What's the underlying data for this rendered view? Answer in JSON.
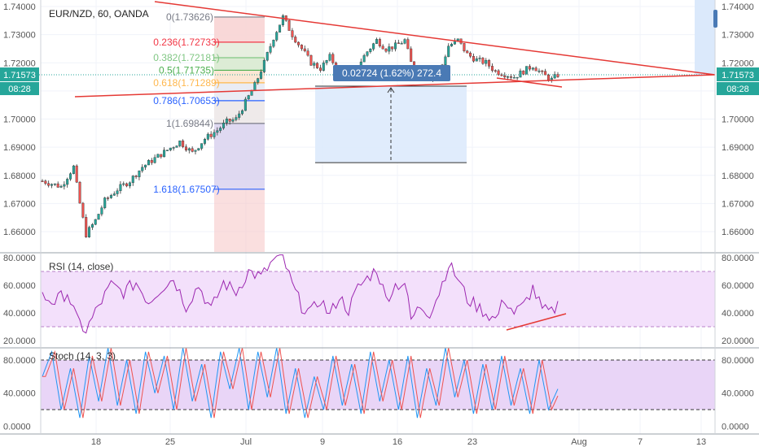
{
  "header": {
    "symbol_title": "EUR/NZD, 60, OANDA"
  },
  "colors": {
    "candle_up": "#26a69a",
    "candle_down": "#ef5350",
    "trendline": "#e53935",
    "rsi_line": "#9c27b0",
    "rsi_band": "#f3e0fb",
    "stoch_k": "#2196f3",
    "stoch_d": "#ef5350",
    "stoch_band": "#e9d5f7",
    "price_tag": "#26a69a",
    "price_line": "#26a69a",
    "measure_label_bg": "#4a7ab5",
    "measure_box": "#dbe9fb",
    "grid": "#f0f3fa",
    "axis_text": "#555555"
  },
  "chart_data": [
    {
      "type": "candlestick",
      "title": "EUR/NZD, 60, OANDA",
      "x_ticks": [
        "18",
        "25",
        "Jul",
        "9",
        "16",
        "23",
        "Aug",
        "7",
        "13"
      ],
      "y_ticks": [
        "1.74000",
        "1.73000",
        "1.72000",
        "1.71000",
        "1.70000",
        "1.69000",
        "1.68000",
        "1.67000",
        "1.66000"
      ],
      "ylim": [
        1.652,
        1.7405
      ],
      "close_path": [
        [
          0,
          1.678
        ],
        [
          6,
          1.676
        ],
        [
          10,
          1.683
        ],
        [
          12,
          1.67
        ],
        [
          14,
          1.659
        ],
        [
          17,
          1.664
        ],
        [
          20,
          1.671
        ],
        [
          24,
          1.675
        ],
        [
          28,
          1.678
        ],
        [
          32,
          1.683
        ],
        [
          36,
          1.686
        ],
        [
          40,
          1.689
        ],
        [
          44,
          1.692
        ],
        [
          48,
          1.688
        ],
        [
          52,
          1.693
        ],
        [
          56,
          1.696
        ],
        [
          59,
          1.699
        ],
        [
          62,
          1.7
        ],
        [
          65,
          1.706
        ],
        [
          68,
          1.712
        ],
        [
          71,
          1.72
        ],
        [
          74,
          1.729
        ],
        [
          77,
          1.7362
        ],
        [
          80,
          1.73
        ],
        [
          83,
          1.725
        ],
        [
          86,
          1.72
        ],
        [
          89,
          1.718
        ],
        [
          92,
          1.722
        ],
        [
          95,
          1.717
        ],
        [
          98,
          1.715
        ],
        [
          101,
          1.719
        ],
        [
          104,
          1.724
        ],
        [
          107,
          1.728
        ],
        [
          110,
          1.725
        ],
        [
          113,
          1.726
        ],
        [
          116,
          1.728
        ],
        [
          118,
          1.72
        ],
        [
          121,
          1.718
        ],
        [
          124,
          1.715
        ],
        [
          127,
          1.716
        ],
        [
          130,
          1.726
        ],
        [
          133,
          1.728
        ],
        [
          136,
          1.723
        ],
        [
          139,
          1.721
        ],
        [
          142,
          1.72
        ],
        [
          145,
          1.717
        ],
        [
          148,
          1.716
        ],
        [
          151,
          1.715
        ],
        [
          154,
          1.717
        ],
        [
          157,
          1.719
        ],
        [
          160,
          1.716
        ],
        [
          163,
          1.714
        ],
        [
          165,
          1.7157
        ]
      ],
      "last_price": "1.71573",
      "countdown": "08:28",
      "fibonacci": [
        {
          "ratio": "0",
          "price": "1.73626",
          "color": "#787b86"
        },
        {
          "ratio": "0.236",
          "price": "1.72733",
          "color": "#f23645"
        },
        {
          "ratio": "0.382",
          "price": "1.72181",
          "color": "#81c784"
        },
        {
          "ratio": "0.5",
          "price": "1.71735",
          "color": "#4caf50"
        },
        {
          "ratio": "0.618",
          "price": "1.71289",
          "color": "#ffb74d"
        },
        {
          "ratio": "0.786",
          "price": "1.70653",
          "color": "#2962ff"
        },
        {
          "ratio": "1",
          "price": "1.69844",
          "color": "#787b86"
        },
        {
          "ratio": "1.618",
          "price": "1.67507",
          "color": "#2962ff"
        }
      ],
      "measure_label": "0.02724 (1.62%) 272.4",
      "measure_range": [
        1.6845,
        1.7117
      ]
    },
    {
      "type": "line",
      "title": "RSI (14, close)",
      "ylim": [
        20,
        80
      ],
      "y_ticks": [
        "80.0000",
        "60.0000",
        "40.0000",
        "20.0000"
      ],
      "bands": [
        30,
        70
      ],
      "path": [
        [
          0,
          52
        ],
        [
          4,
          48
        ],
        [
          8,
          55
        ],
        [
          11,
          35
        ],
        [
          14,
          27
        ],
        [
          18,
          45
        ],
        [
          22,
          60
        ],
        [
          26,
          55
        ],
        [
          30,
          62
        ],
        [
          34,
          48
        ],
        [
          38,
          58
        ],
        [
          42,
          65
        ],
        [
          46,
          45
        ],
        [
          50,
          60
        ],
        [
          54,
          42
        ],
        [
          58,
          62
        ],
        [
          62,
          55
        ],
        [
          66,
          70
        ],
        [
          70,
          66
        ],
        [
          74,
          78
        ],
        [
          77,
          80
        ],
        [
          80,
          60
        ],
        [
          83,
          45
        ],
        [
          86,
          40
        ],
        [
          89,
          50
        ],
        [
          92,
          38
        ],
        [
          95,
          52
        ],
        [
          98,
          42
        ],
        [
          101,
          58
        ],
        [
          104,
          65
        ],
        [
          107,
          72
        ],
        [
          110,
          50
        ],
        [
          113,
          60
        ],
        [
          116,
          62
        ],
        [
          118,
          35
        ],
        [
          121,
          45
        ],
        [
          124,
          40
        ],
        [
          127,
          55
        ],
        [
          130,
          75
        ],
        [
          133,
          65
        ],
        [
          136,
          50
        ],
        [
          139,
          45
        ],
        [
          142,
          40
        ],
        [
          145,
          35
        ],
        [
          148,
          50
        ],
        [
          151,
          40
        ],
        [
          154,
          45
        ],
        [
          157,
          58
        ],
        [
          160,
          42
        ],
        [
          163,
          40
        ],
        [
          165,
          46
        ]
      ]
    },
    {
      "type": "line",
      "title": "Stoch (14, 3, 3)",
      "ylim": [
        0,
        100
      ],
      "y_ticks": [
        "80.0000",
        "40.0000",
        "0.0000"
      ],
      "bands": [
        20,
        80
      ],
      "k_path": [
        [
          0,
          60
        ],
        [
          3,
          90
        ],
        [
          6,
          20
        ],
        [
          9,
          70
        ],
        [
          12,
          10
        ],
        [
          15,
          85
        ],
        [
          18,
          30
        ],
        [
          21,
          95
        ],
        [
          24,
          25
        ],
        [
          27,
          80
        ],
        [
          30,
          15
        ],
        [
          33,
          90
        ],
        [
          36,
          40
        ],
        [
          39,
          85
        ],
        [
          42,
          20
        ],
        [
          45,
          95
        ],
        [
          48,
          30
        ],
        [
          51,
          75
        ],
        [
          54,
          10
        ],
        [
          57,
          90
        ],
        [
          60,
          45
        ],
        [
          63,
          95
        ],
        [
          66,
          20
        ],
        [
          69,
          90
        ],
        [
          72,
          35
        ],
        [
          75,
          95
        ],
        [
          78,
          15
        ],
        [
          81,
          70
        ],
        [
          84,
          10
        ],
        [
          87,
          60
        ],
        [
          90,
          20
        ],
        [
          93,
          85
        ],
        [
          96,
          25
        ],
        [
          99,
          75
        ],
        [
          102,
          15
        ],
        [
          105,
          90
        ],
        [
          108,
          30
        ],
        [
          111,
          80
        ],
        [
          114,
          20
        ],
        [
          117,
          85
        ],
        [
          120,
          10
        ],
        [
          123,
          70
        ],
        [
          126,
          25
        ],
        [
          129,
          95
        ],
        [
          132,
          35
        ],
        [
          135,
          80
        ],
        [
          138,
          15
        ],
        [
          141,
          75
        ],
        [
          144,
          20
        ],
        [
          147,
          85
        ],
        [
          150,
          25
        ],
        [
          153,
          70
        ],
        [
          156,
          15
        ],
        [
          159,
          80
        ],
        [
          162,
          20
        ],
        [
          165,
          45
        ]
      ]
    }
  ]
}
